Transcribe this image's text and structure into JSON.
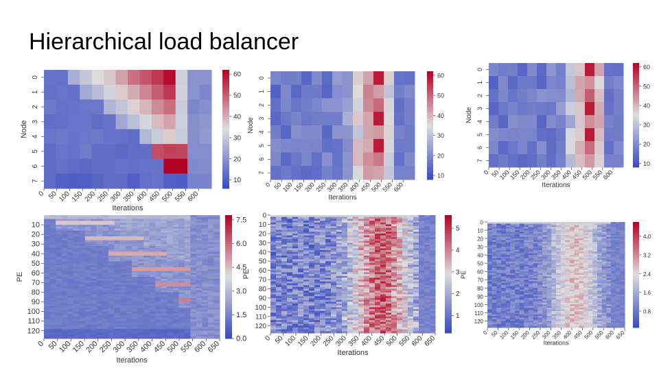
{
  "slide": {
    "title": "Hierarchical load balancer"
  },
  "colors": {
    "low": "#3b4cc0",
    "mid": "#dddddd",
    "high": "#b40426"
  },
  "chart_data": [
    {
      "type": "heatmap",
      "title": "",
      "xlabel": "Iterations",
      "ylabel": "Node",
      "x_ticks": [
        "0",
        "50",
        "100",
        "150",
        "200",
        "250",
        "300",
        "350",
        "400",
        "450",
        "500",
        "550",
        "600"
      ],
      "y_ticks": [
        "0",
        "1",
        "2",
        "3",
        "4",
        "5",
        "6",
        "7"
      ],
      "colorbar_ticks": [
        "10",
        "20",
        "30",
        "40",
        "50",
        "60"
      ],
      "vmin": 6,
      "vmax": 62,
      "pattern": "diagonal-node",
      "colormap": "coolwarm"
    },
    {
      "type": "heatmap",
      "title": "",
      "xlabel": "Iterations",
      "ylabel": "Node",
      "x_ticks": [
        "0",
        "50",
        "100",
        "150",
        "200",
        "250",
        "300",
        "350",
        "400",
        "450",
        "500",
        "550",
        "600"
      ],
      "y_ticks": [
        "0",
        "1",
        "2",
        "3",
        "4",
        "5",
        "6",
        "7"
      ],
      "colorbar_ticks": [
        "10",
        "20",
        "30",
        "40",
        "50",
        "60"
      ],
      "vmin": 8,
      "vmax": 62,
      "pattern": "noisy-node-a",
      "colormap": "coolwarm"
    },
    {
      "type": "heatmap",
      "title": "",
      "xlabel": "Iterations",
      "ylabel": "Node",
      "x_ticks": [
        "0",
        "50",
        "100",
        "150",
        "200",
        "250",
        "300",
        "350",
        "400",
        "450",
        "500",
        "550",
        "600"
      ],
      "y_ticks": [
        "0",
        "1",
        "2",
        "3",
        "4",
        "5",
        "6",
        "7"
      ],
      "colorbar_ticks": [
        "10",
        "20",
        "30",
        "40",
        "50",
        "60"
      ],
      "vmin": 8,
      "vmax": 62,
      "pattern": "noisy-node-b",
      "colormap": "coolwarm"
    },
    {
      "type": "heatmap",
      "title": "",
      "xlabel": "Iterations",
      "ylabel": "PE",
      "x_ticks": [
        "0",
        "50",
        "100",
        "150",
        "200",
        "250",
        "300",
        "350",
        "400",
        "450",
        "500",
        "550",
        "600",
        "650"
      ],
      "y_ticks": [
        "10",
        "20",
        "30",
        "40",
        "50",
        "60",
        "70",
        "80",
        "90",
        "100",
        "110",
        "120"
      ],
      "colorbar_ticks": [
        "0.0",
        "1.5",
        "3.0",
        "4.5",
        "6.0",
        "7.5"
      ],
      "vmin": 0,
      "vmax": 7.8,
      "pattern": "diagonal-pe",
      "colormap": "coolwarm"
    },
    {
      "type": "heatmap",
      "title": "",
      "xlabel": "Iterations",
      "ylabel": "PE",
      "x_ticks": [
        "0",
        "50",
        "100",
        "150",
        "200",
        "250",
        "300",
        "350",
        "400",
        "450",
        "500",
        "550",
        "600",
        "650"
      ],
      "y_ticks": [
        "0",
        "10",
        "20",
        "30",
        "40",
        "50",
        "60",
        "70",
        "80",
        "90",
        "100",
        "110",
        "120"
      ],
      "colorbar_ticks": [
        "1",
        "2",
        "3",
        "4",
        "5"
      ],
      "vmin": 0.2,
      "vmax": 5.6,
      "pattern": "noisy-pe-a",
      "colormap": "coolwarm"
    },
    {
      "type": "heatmap",
      "title": "",
      "xlabel": "Iterations",
      "ylabel": "PE",
      "x_ticks": [
        "0",
        "50",
        "100",
        "150",
        "200",
        "250",
        "300",
        "350",
        "400",
        "450",
        "500",
        "550",
        "600",
        "650"
      ],
      "y_ticks": [
        "0",
        "10",
        "20",
        "30",
        "40",
        "50",
        "60",
        "70",
        "80",
        "90",
        "100",
        "110",
        "120"
      ],
      "colorbar_ticks": [
        "0.8",
        "1.6",
        "2.4",
        "3.2",
        "4.0"
      ],
      "vmin": 0.1,
      "vmax": 4.6,
      "pattern": "noisy-pe-b",
      "colormap": "coolwarm"
    }
  ]
}
